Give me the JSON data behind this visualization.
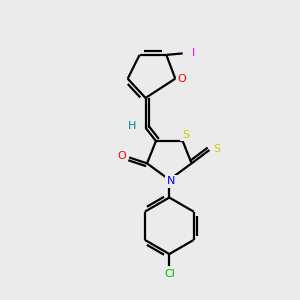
{
  "bg_color": "#ebebeb",
  "bond_color": "#000000",
  "atom_colors": {
    "O": "#ff0000",
    "N": "#0000ff",
    "S_yellow": "#cccc00",
    "Cl": "#00bb00",
    "I": "#ee00ee",
    "H": "#008888",
    "C": "#000000"
  },
  "figsize": [
    3.0,
    3.0
  ],
  "dpi": 100
}
